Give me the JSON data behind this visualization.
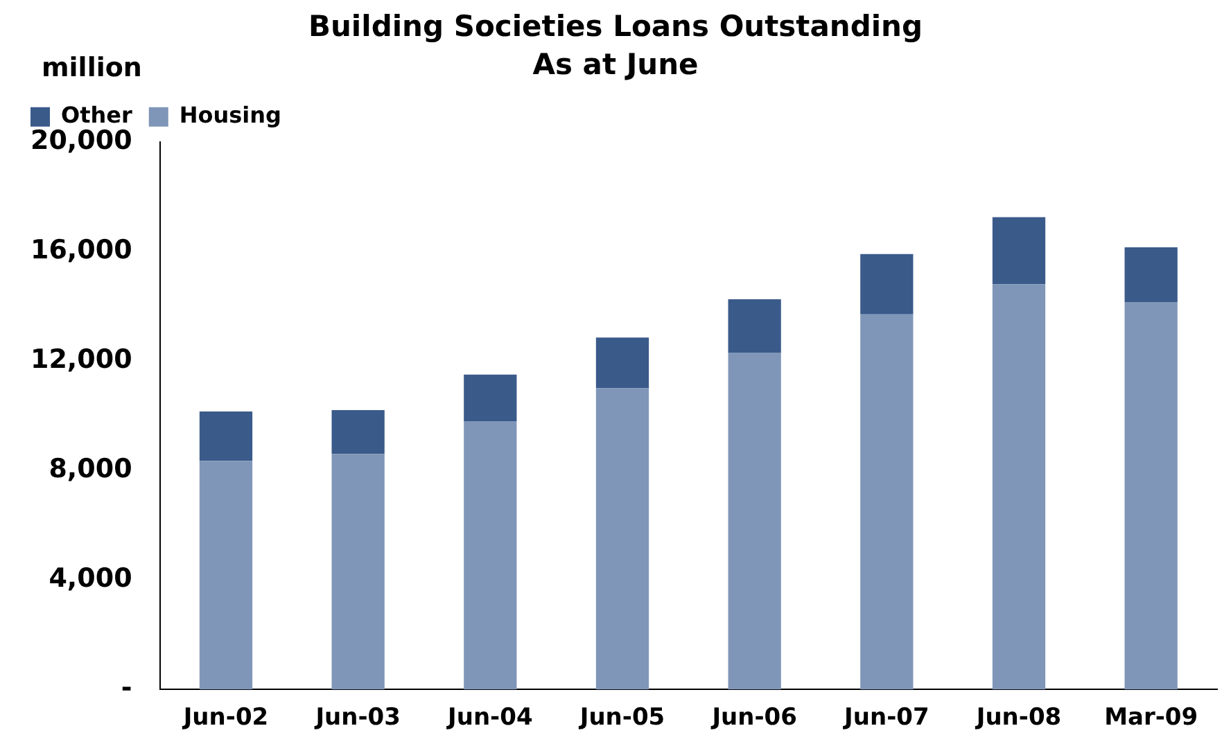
{
  "chart_data": {
    "type": "bar",
    "title": "Building Societies Loans Outstanding",
    "subtitle": "As at June",
    "ylabel": "million",
    "categories": [
      "Jun-02",
      "Jun-03",
      "Jun-04",
      "Jun-05",
      "Jun-06",
      "Jun-07",
      "Jun-08",
      "Mar-09"
    ],
    "stacked": true,
    "series": [
      {
        "name": "Housing",
        "color": "#7f96b8",
        "values": [
          8350,
          8600,
          9800,
          11000,
          12300,
          13700,
          14800,
          14150
        ]
      },
      {
        "name": "Other",
        "color": "#3a5a8a",
        "values": [
          1800,
          1600,
          1700,
          1850,
          1950,
          2200,
          2450,
          2000
        ]
      }
    ],
    "ylim": [
      0,
      20000
    ],
    "yticks": [
      {
        "value": 0,
        "label": "-"
      },
      {
        "value": 4000,
        "label": "4,000"
      },
      {
        "value": 8000,
        "label": "8,000"
      },
      {
        "value": 12000,
        "label": "12,000"
      },
      {
        "value": 16000,
        "label": "16,000"
      },
      {
        "value": 20000,
        "label": "20,000"
      }
    ],
    "grid": false,
    "legend": "top left"
  }
}
